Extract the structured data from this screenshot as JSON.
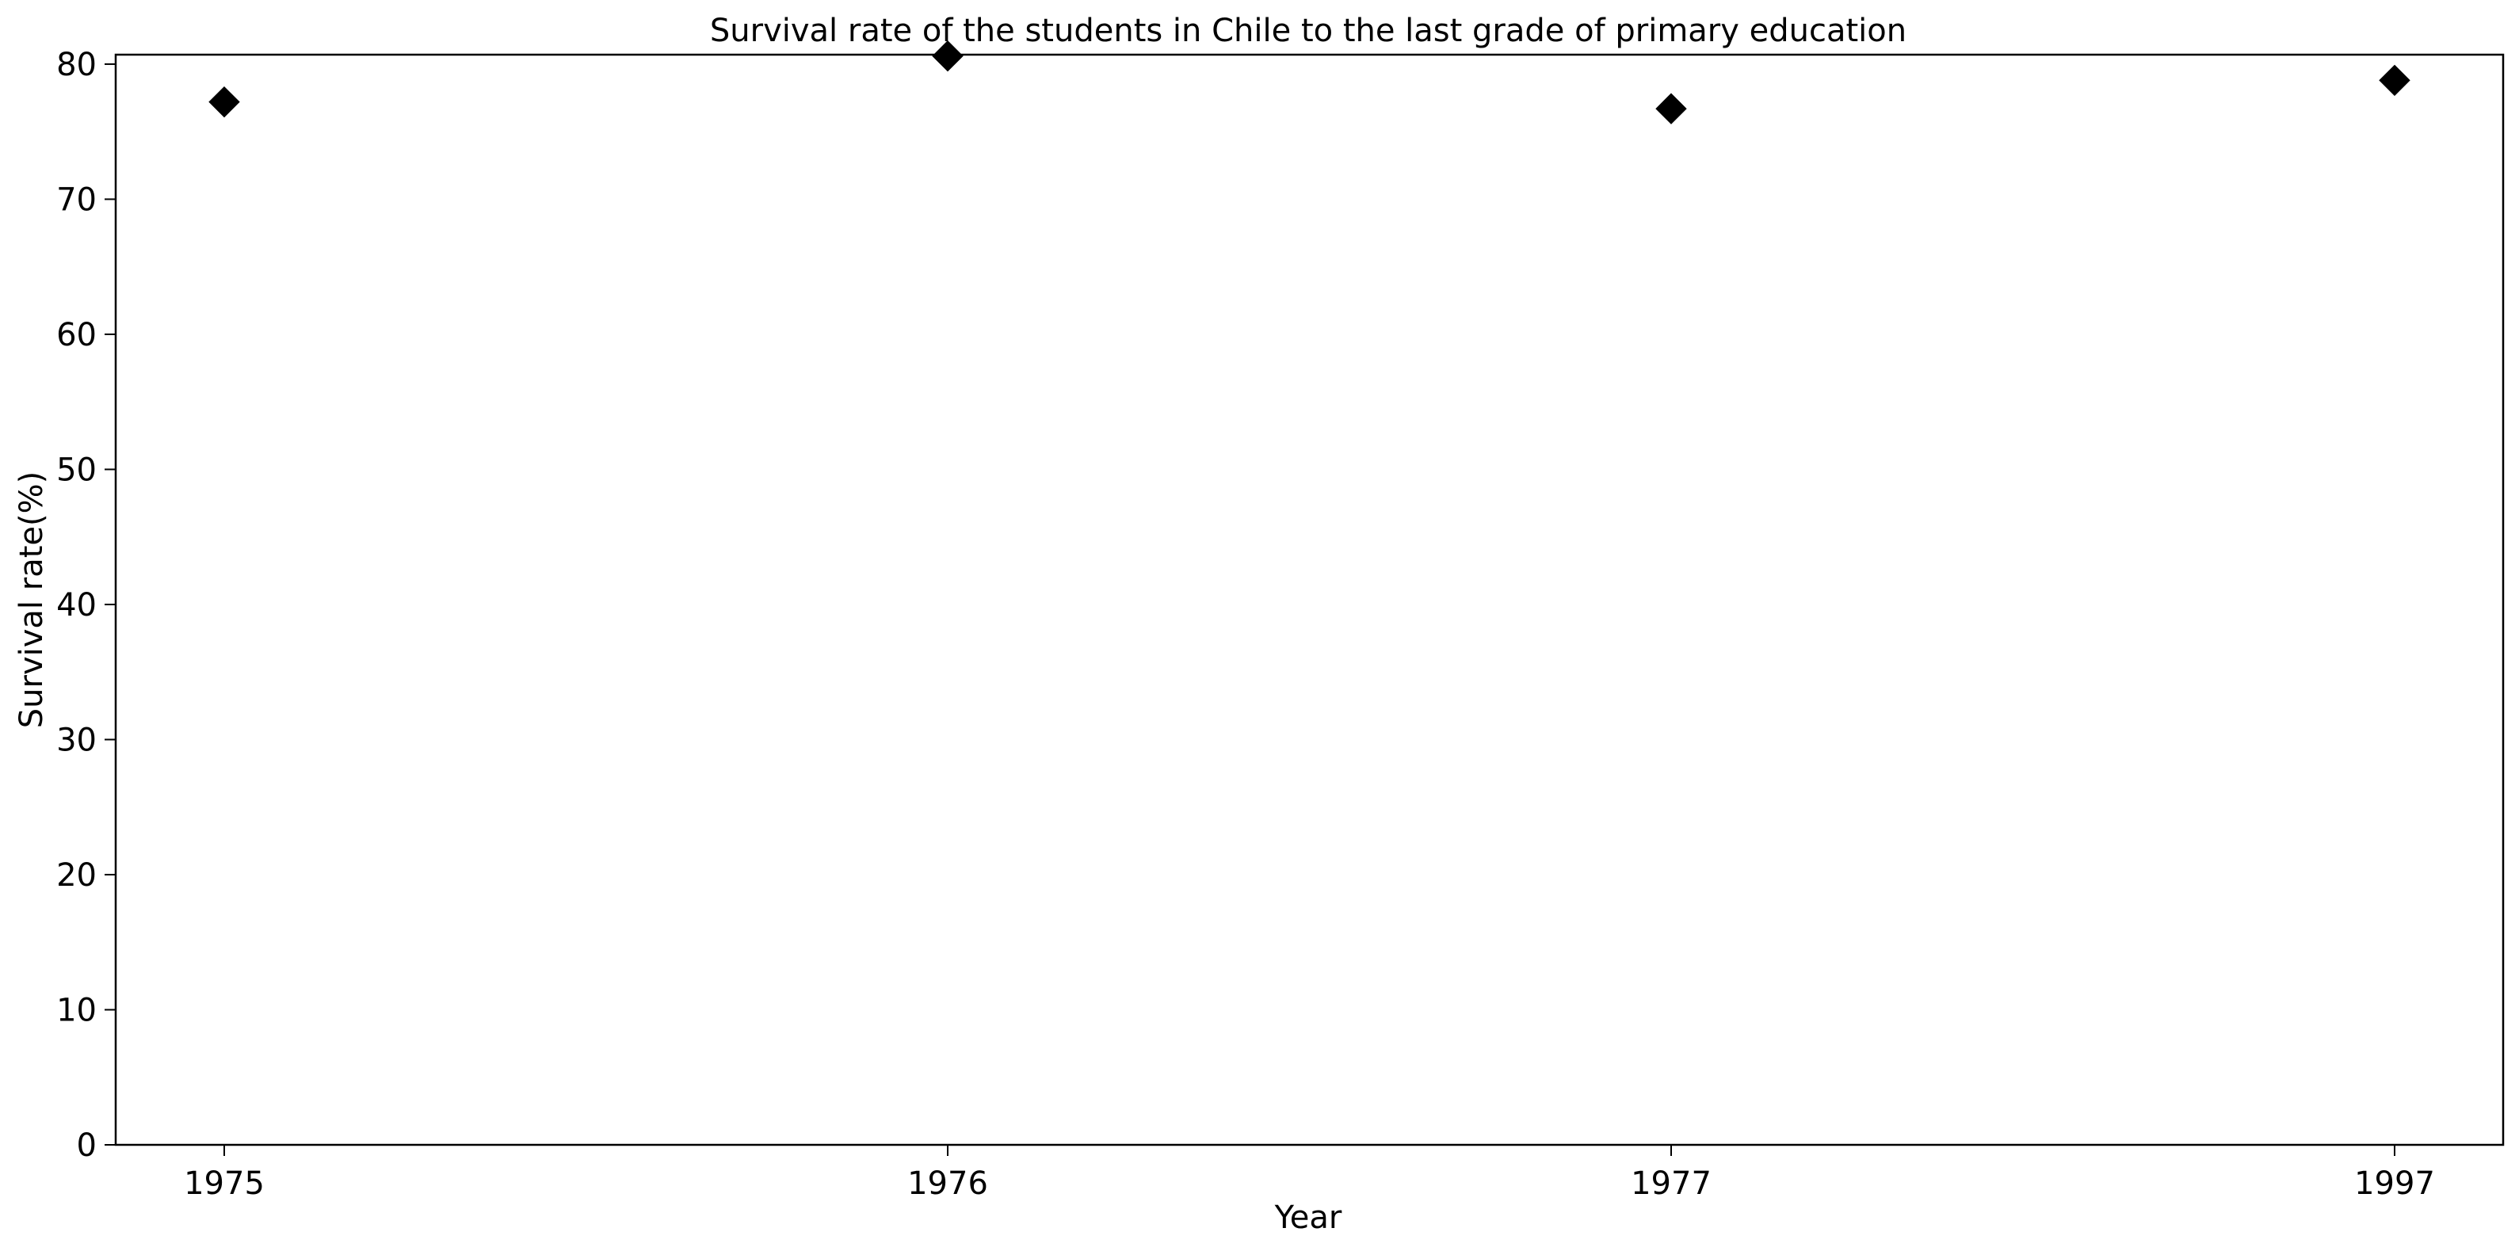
{
  "chart_data": {
    "type": "scatter",
    "title": "Survival rate of the students in Chile to the last grade of primary education",
    "xlabel": "Year",
    "ylabel": "Survival rate(%)",
    "categories": [
      "1975",
      "1976",
      "1977",
      "1997"
    ],
    "series": [
      {
        "values": [
          77.2,
          80.6,
          76.7,
          78.8
        ],
        "marker": "diamond",
        "color": "#000000"
      }
    ],
    "y_ticks": [
      0,
      10,
      20,
      30,
      40,
      50,
      60,
      70,
      80
    ],
    "ylim": [
      0,
      80.7
    ],
    "grid": false,
    "legend": "none"
  }
}
